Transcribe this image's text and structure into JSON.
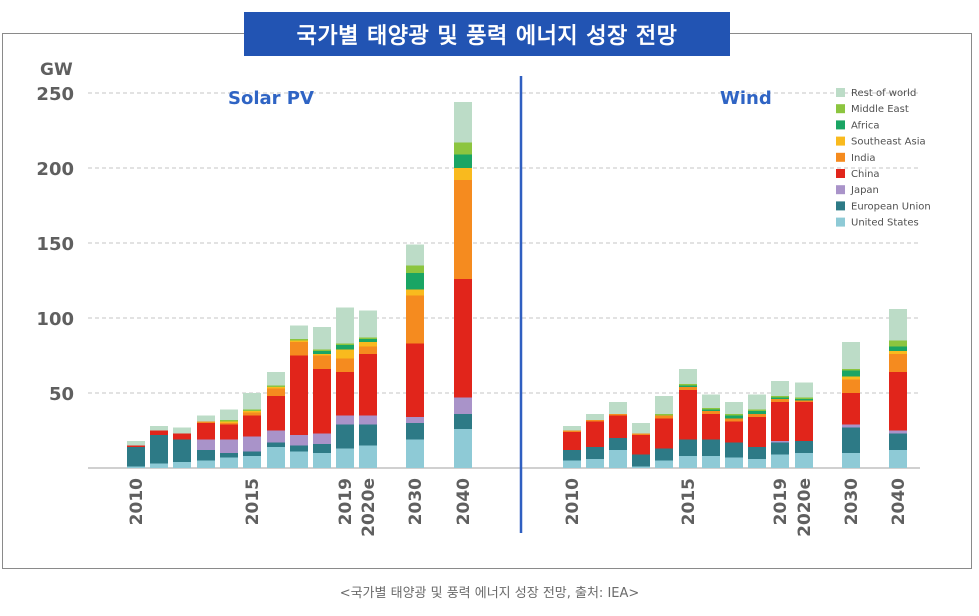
{
  "header": {
    "title": "국가별 태양광 및 풍력 에너지 성장 전망"
  },
  "caption": "<국가별 태양광 및 풍력 에너지 성장 전망, 출처: IEA>",
  "chart_data": {
    "type": "bar",
    "stacked": true,
    "y_unit_label": "GW",
    "ylim": [
      0,
      260
    ],
    "yticks": [
      50,
      100,
      150,
      200,
      250
    ],
    "grid": true,
    "legend_position": "top-right",
    "series_names": [
      "United States",
      "European Union",
      "Japan",
      "China",
      "India",
      "Southeast Asia",
      "Africa",
      "Middle East",
      "Rest of world"
    ],
    "series_colors": [
      "#8ecad6",
      "#2d7a86",
      "#a993c9",
      "#e1251b",
      "#f58b1f",
      "#f9ba1e",
      "#1aa564",
      "#8cc53f",
      "#bcdcc7"
    ],
    "legend": [
      {
        "name": "Rest of world",
        "color": "#bcdcc7"
      },
      {
        "name": "Middle East",
        "color": "#8cc53f"
      },
      {
        "name": "Africa",
        "color": "#1aa564"
      },
      {
        "name": "Southeast Asia",
        "color": "#f9ba1e"
      },
      {
        "name": "India",
        "color": "#f58b1f"
      },
      {
        "name": "China",
        "color": "#e1251b"
      },
      {
        "name": "Japan",
        "color": "#a993c9"
      },
      {
        "name": "European Union",
        "color": "#2d7a86"
      },
      {
        "name": "United States",
        "color": "#8ecad6"
      }
    ],
    "panels": [
      {
        "title": "Solar PV",
        "tick_labels": [
          {
            "bar": 0,
            "label": "2010"
          },
          {
            "bar": 5,
            "label": "2015"
          },
          {
            "bar": 9,
            "label": "2019"
          },
          {
            "bar": 10,
            "label": "2020e"
          },
          {
            "bar": 11,
            "label": "2030"
          },
          {
            "bar": 12,
            "label": "2040"
          }
        ],
        "bars": [
          {
            "year": "2010",
            "values": [
              1,
              13,
              0,
              1,
              0,
              0,
              0,
              0,
              3
            ]
          },
          {
            "year": "2011",
            "values": [
              3,
              19,
              0,
              3,
              0,
              0,
              0,
              0,
              3
            ]
          },
          {
            "year": "2012",
            "values": [
              4,
              15,
              0,
              4,
              0,
              0,
              0,
              0,
              4
            ]
          },
          {
            "year": "2013",
            "values": [
              5,
              7,
              7,
              11,
              1,
              0,
              0,
              0,
              4
            ]
          },
          {
            "year": "2014",
            "values": [
              7,
              3,
              9,
              10,
              1,
              1,
              0,
              1,
              7
            ]
          },
          {
            "year": "2015",
            "values": [
              8,
              3,
              10,
              14,
              2,
              1,
              0,
              1,
              11
            ]
          },
          {
            "year": "2016",
            "values": [
              14,
              3,
              8,
              23,
              5,
              1,
              0,
              1,
              9
            ]
          },
          {
            "year": "2017",
            "values": [
              11,
              4,
              7,
              53,
              9,
              1,
              0,
              1,
              9
            ]
          },
          {
            "year": "2018",
            "values": [
              10,
              6,
              7,
              43,
              9,
              1,
              2,
              1,
              15
            ]
          },
          {
            "year": "2019",
            "values": [
              13,
              16,
              6,
              29,
              9,
              6,
              3,
              1,
              24
            ]
          },
          {
            "year": "2020e",
            "values": [
              15,
              14,
              6,
              41,
              5,
              3,
              2,
              1,
              18
            ]
          },
          {
            "year": "2030",
            "values": [
              19,
              11,
              4,
              49,
              32,
              4,
              11,
              5,
              14
            ]
          },
          {
            "year": "2040",
            "values": [
              26,
              10,
              11,
              79,
              66,
              8,
              9,
              8,
              27
            ]
          }
        ]
      },
      {
        "title": "Wind",
        "tick_labels": [
          {
            "bar": 0,
            "label": "2010"
          },
          {
            "bar": 5,
            "label": "2015"
          },
          {
            "bar": 9,
            "label": "2019"
          },
          {
            "bar": 10,
            "label": "2020e"
          },
          {
            "bar": 11,
            "label": "2030"
          },
          {
            "bar": 12,
            "label": "2040"
          }
        ],
        "bars": [
          {
            "year": "2010",
            "values": [
              5,
              7,
              0,
              12,
              1,
              0,
              0,
              0,
              3
            ]
          },
          {
            "year": "2011",
            "values": [
              6,
              8,
              0,
              17,
              1,
              0,
              0,
              0,
              4
            ]
          },
          {
            "year": "2012",
            "values": [
              12,
              8,
              0,
              15,
              1,
              0,
              0,
              0,
              8
            ]
          },
          {
            "year": "2013",
            "values": [
              1,
              8,
              0,
              13,
              1,
              0,
              0,
              0,
              7
            ]
          },
          {
            "year": "2014",
            "values": [
              5,
              8,
              0,
              20,
              2,
              0,
              0,
              1,
              12
            ]
          },
          {
            "year": "2015",
            "values": [
              8,
              11,
              0,
              33,
              2,
              0,
              1,
              1,
              10
            ]
          },
          {
            "year": "2016",
            "values": [
              8,
              11,
              0,
              17,
              2,
              0,
              1,
              1,
              9
            ]
          },
          {
            "year": "2017",
            "values": [
              7,
              10,
              0,
              14,
              2,
              0,
              2,
              1,
              8
            ]
          },
          {
            "year": "2018",
            "values": [
              6,
              8,
              0,
              20,
              2,
              0,
              2,
              1,
              10
            ]
          },
          {
            "year": "2019",
            "values": [
              9,
              8,
              1,
              26,
              2,
              0,
              1,
              1,
              10
            ]
          },
          {
            "year": "2020e",
            "values": [
              10,
              8,
              0,
              26,
              1,
              0,
              1,
              1,
              10
            ]
          },
          {
            "year": "2030",
            "values": [
              10,
              17,
              2,
              21,
              9,
              2,
              4,
              1,
              18
            ]
          },
          {
            "year": "2040",
            "values": [
              12,
              11,
              2,
              39,
              12,
              2,
              3,
              4,
              21
            ]
          }
        ]
      }
    ]
  }
}
